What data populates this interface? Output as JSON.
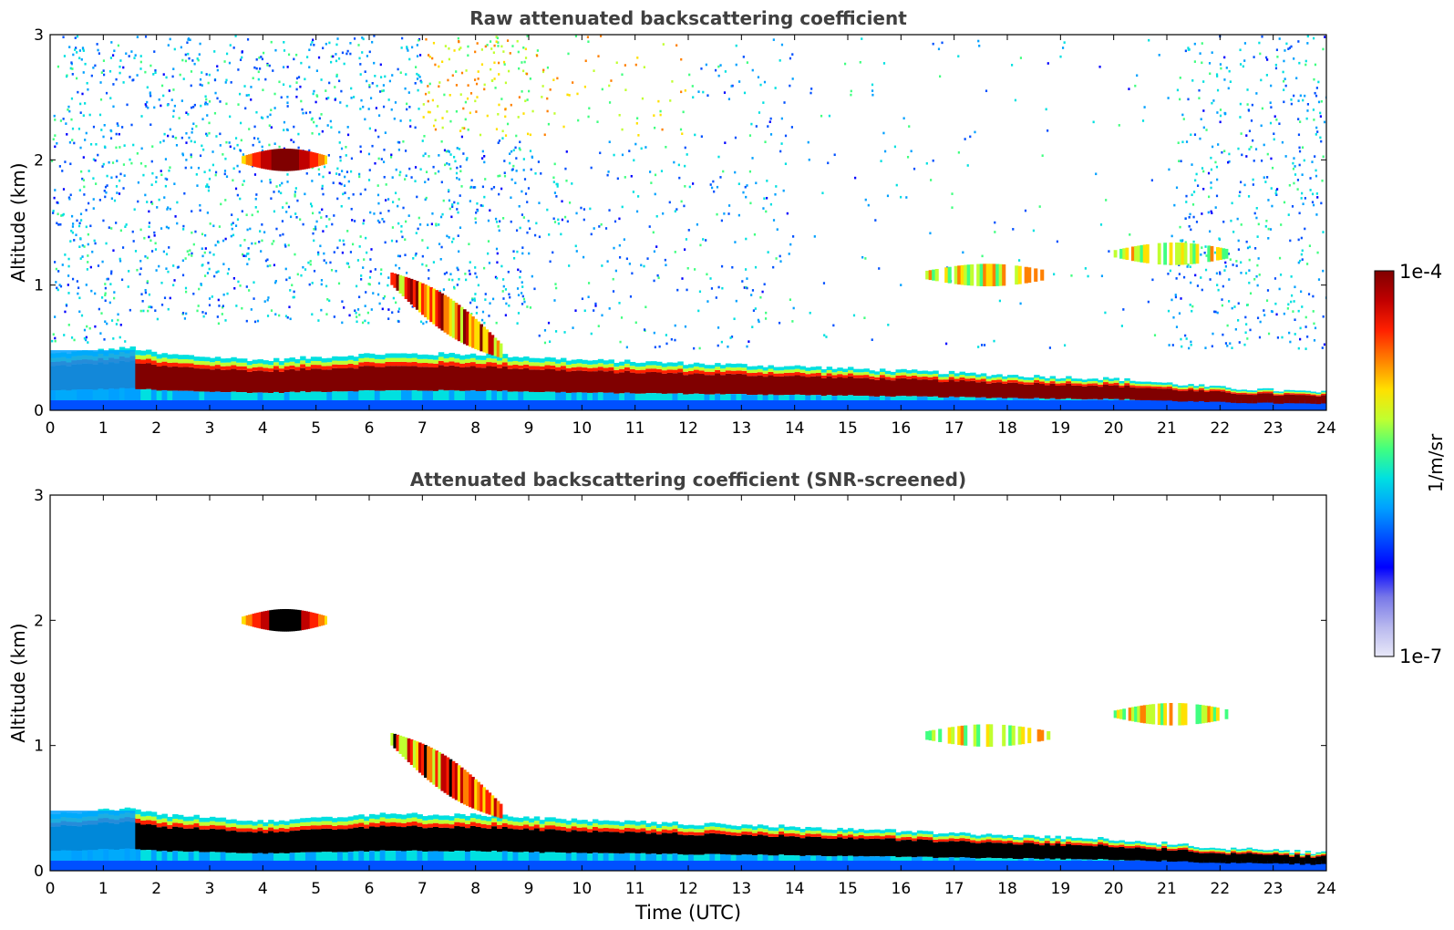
{
  "chart_data": [
    {
      "type": "heatmap",
      "title": "Raw attenuated backscattering coefficient",
      "xlabel": "",
      "ylabel": "Altitude (km)",
      "xlim": [
        0,
        24
      ],
      "ylim": [
        0,
        3
      ],
      "xticks": [
        "0",
        "1",
        "2",
        "3",
        "4",
        "5",
        "6",
        "7",
        "8",
        "9",
        "10",
        "11",
        "12",
        "13",
        "14",
        "15",
        "16",
        "17",
        "18",
        "19",
        "20",
        "21",
        "22",
        "23",
        "24"
      ],
      "yticks": [
        "0",
        "1",
        "2",
        "3"
      ],
      "boundary_layer_top_km": [
        {
          "t": 0,
          "top": 0.45
        },
        {
          "t": 1.5,
          "top": 0.5
        },
        {
          "t": 2,
          "top": 0.45
        },
        {
          "t": 4,
          "top": 0.4
        },
        {
          "t": 6,
          "top": 0.45
        },
        {
          "t": 8,
          "top": 0.45
        },
        {
          "t": 10,
          "top": 0.4
        },
        {
          "t": 14,
          "top": 0.35
        },
        {
          "t": 18,
          "top": 0.28
        },
        {
          "t": 20,
          "top": 0.25
        },
        {
          "t": 22,
          "top": 0.18
        },
        {
          "t": 24,
          "top": 0.14
        }
      ],
      "features": [
        {
          "name": "elevated aerosol layer",
          "t_start": 3.6,
          "t_end": 5.2,
          "altitude_km": 2.0
        },
        {
          "name": "aerosol plume",
          "t_start": 6.4,
          "t_end": 8.5,
          "altitude_km": 0.8
        },
        {
          "name": "thin layer",
          "t_start": 16.4,
          "t_end": 18.8,
          "altitude_km": 1.08
        },
        {
          "name": "thin layer",
          "t_start": 20.0,
          "t_end": 22.2,
          "altitude_km": 1.25
        }
      ]
    },
    {
      "type": "heatmap",
      "title": "Attenuated backscattering coefficient (SNR-screened)",
      "xlabel": "Time (UTC)",
      "ylabel": "Altitude (km)",
      "xlim": [
        0,
        24
      ],
      "ylim": [
        0,
        3
      ],
      "xticks": [
        "0",
        "1",
        "2",
        "3",
        "4",
        "5",
        "6",
        "7",
        "8",
        "9",
        "10",
        "11",
        "12",
        "13",
        "14",
        "15",
        "16",
        "17",
        "18",
        "19",
        "20",
        "21",
        "22",
        "23",
        "24"
      ],
      "yticks": [
        "0",
        "1",
        "2",
        "3"
      ]
    }
  ],
  "colorbar": {
    "label": "1/m/sr",
    "max_label": "1e-4",
    "min_label": "1e-7",
    "min": 1e-07,
    "max": 0.0001,
    "scale": "log",
    "colors": [
      "#e8e8f8",
      "#b8b8ee",
      "#7878e8",
      "#0000ff",
      "#0050ff",
      "#00a0ff",
      "#00e0e0",
      "#40ff80",
      "#c0ff30",
      "#ffe000",
      "#ff8000",
      "#ff2000",
      "#c00000",
      "#800000"
    ]
  }
}
